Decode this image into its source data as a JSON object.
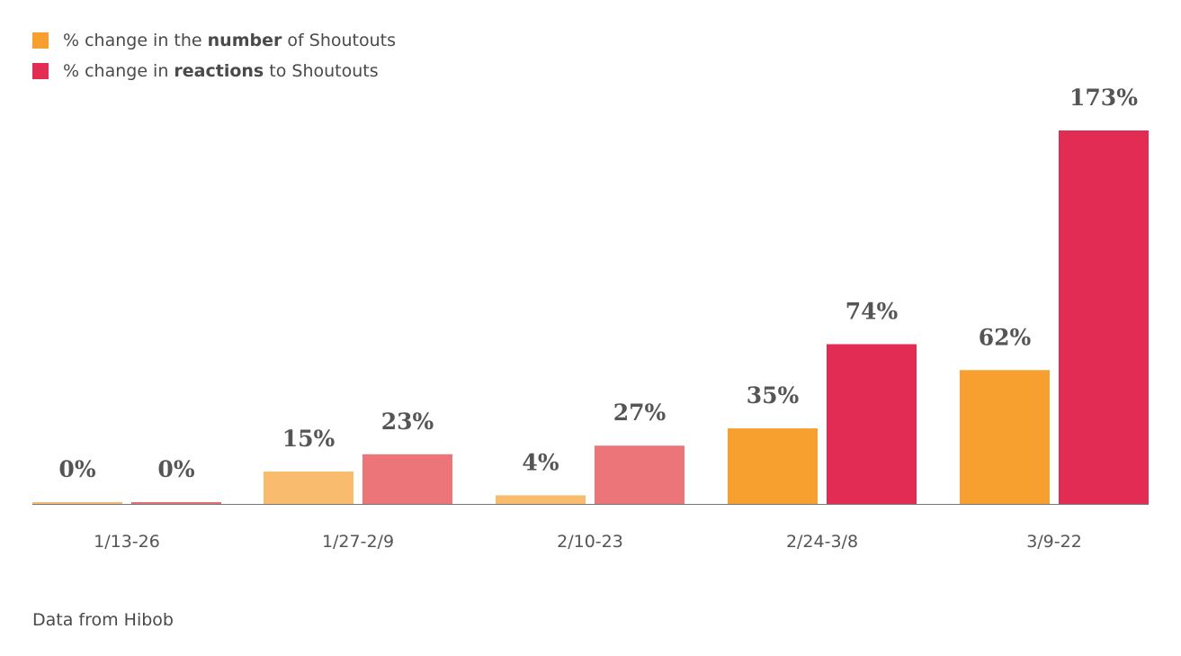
{
  "legend": {
    "items": [
      {
        "prefix": "% change in the ",
        "bold": "number",
        "suffix": " of Shoutouts",
        "color": "#f7a030"
      },
      {
        "prefix": "% change in ",
        "bold": "reactions",
        "suffix": " to Shoutouts",
        "color": "#e32c53"
      }
    ]
  },
  "source": "Data from Hibob",
  "chart_data": {
    "type": "bar",
    "categories": [
      "1/13-26",
      "1/27-2/9",
      "2/10-23",
      "2/24-3/8",
      "3/9-22"
    ],
    "series": [
      {
        "name": "% change in the number of Shoutouts",
        "values": [
          0,
          15,
          4,
          35,
          62
        ],
        "colors": [
          "#f8b877",
          "#f9bc6f",
          "#f9bc6f",
          "#f7a030",
          "#f7a030"
        ]
      },
      {
        "name": "% change in reactions to Shoutouts",
        "values": [
          0,
          23,
          27,
          74,
          173
        ],
        "colors": [
          "#e86f78",
          "#eb7579",
          "#eb7579",
          "#e32c53",
          "#e32c53"
        ]
      }
    ],
    "data_labels": [
      [
        "0%",
        "15%",
        "4%",
        "35%",
        "62%"
      ],
      [
        "0%",
        "23%",
        "27%",
        "74%",
        "173%"
      ]
    ],
    "ylim": [
      0,
      173
    ],
    "grid": false,
    "legend_position": "top-left",
    "xlabel": "",
    "ylabel": ""
  }
}
